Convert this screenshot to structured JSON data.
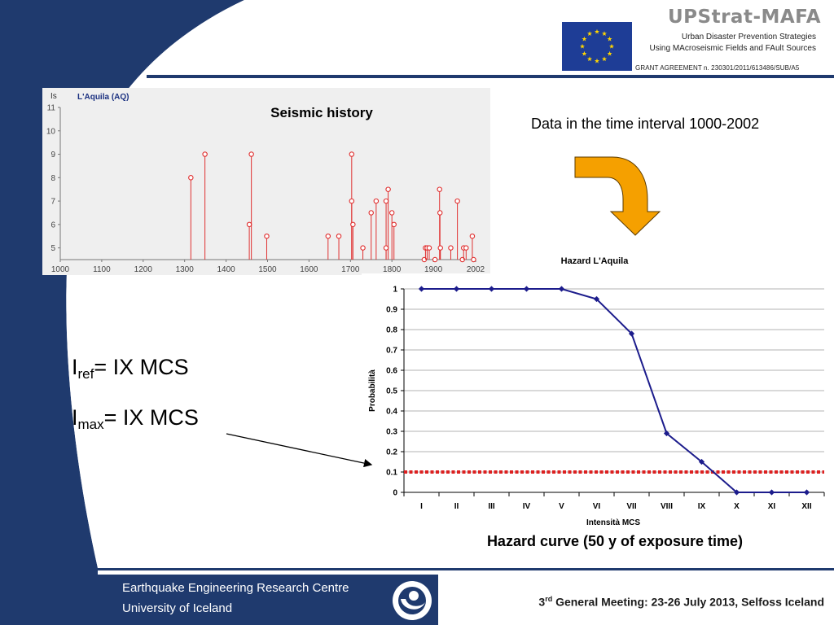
{
  "logo": {
    "title": "UPStrat-MAFA",
    "line1": "Urban Disaster Prevention Strategies",
    "line2": "Using MAcroseismic Fields and FAult Sources",
    "grant": "GRANT AGREEMENT n. 230301/2011/613486/SUB/A5"
  },
  "seismic_label": "Seismic history",
  "note": "Data in the time interval 1000-2002",
  "iref": {
    "prefix": "I",
    "sub": "ref",
    "rest": "= IX MCS"
  },
  "imax": {
    "prefix": "I",
    "sub": "max",
    "rest": "= IX MCS"
  },
  "caption": "Hazard curve (50 y of exposure time)",
  "footer": {
    "org_line1": "Earthquake Engineering Research Centre",
    "org_line2": "University of Iceland",
    "meeting_num": "3",
    "meeting_sup": "rd",
    "meeting_text": " General Meeting: 23-26 July 2013, Selfoss Iceland"
  },
  "colors": {
    "navy": "#1f3a6e",
    "seismic_red": "#e03030",
    "hazard_blue": "#1c1c8c",
    "threshold_red": "#dd2020",
    "arrow_orange": "#f5a000"
  },
  "chart_data": [
    {
      "type": "scatter",
      "title": "L'Aquila (AQ)",
      "ylabel": "Is",
      "xlim": [
        1000,
        2002
      ],
      "ylim": [
        4.5,
        11
      ],
      "x_ticks": [
        1000,
        1100,
        1200,
        1300,
        1400,
        1500,
        1600,
        1700,
        1800,
        1900,
        2002
      ],
      "y_ticks": [
        5,
        6,
        7,
        8,
        9,
        10,
        11
      ],
      "events": [
        {
          "year": 1315,
          "is": 8
        },
        {
          "year": 1349,
          "is": 9
        },
        {
          "year": 1456,
          "is": 6
        },
        {
          "year": 1461,
          "is": 9
        },
        {
          "year": 1498,
          "is": 5.5
        },
        {
          "year": 1646,
          "is": 5.5
        },
        {
          "year": 1672,
          "is": 5.5
        },
        {
          "year": 1703,
          "is": 9
        },
        {
          "year": 1703,
          "is": 7
        },
        {
          "year": 1706,
          "is": 6
        },
        {
          "year": 1730,
          "is": 5
        },
        {
          "year": 1750,
          "is": 6.5
        },
        {
          "year": 1762,
          "is": 7
        },
        {
          "year": 1786,
          "is": 7
        },
        {
          "year": 1786,
          "is": 5
        },
        {
          "year": 1791,
          "is": 7.5
        },
        {
          "year": 1800,
          "is": 6.5
        },
        {
          "year": 1805,
          "is": 6
        },
        {
          "year": 1878,
          "is": 4.5
        },
        {
          "year": 1881,
          "is": 5
        },
        {
          "year": 1885,
          "is": 5
        },
        {
          "year": 1890,
          "is": 5
        },
        {
          "year": 1904,
          "is": 4.5
        },
        {
          "year": 1915,
          "is": 7.5
        },
        {
          "year": 1916,
          "is": 6.5
        },
        {
          "year": 1917,
          "is": 5
        },
        {
          "year": 1942,
          "is": 5
        },
        {
          "year": 1958,
          "is": 7
        },
        {
          "year": 1970,
          "is": 4.5
        },
        {
          "year": 1973,
          "is": 5
        },
        {
          "year": 1979,
          "is": 5
        },
        {
          "year": 1994,
          "is": 5.5
        },
        {
          "year": 1997,
          "is": 4.5
        }
      ]
    },
    {
      "type": "line",
      "title": "Hazard L'Aquila",
      "xlabel": "Intensità MCS",
      "ylabel": "Probabilità",
      "categories": [
        "I",
        "II",
        "III",
        "IV",
        "V",
        "VI",
        "VII",
        "VIII",
        "IX",
        "X",
        "XI",
        "XII"
      ],
      "ylim": [
        0,
        1
      ],
      "y_ticks": [
        "0",
        "0.1",
        "0.2",
        "0.3",
        "0.4",
        "0.5",
        "0.6",
        "0.7",
        "0.8",
        "0.9",
        "1"
      ],
      "series": [
        {
          "values": [
            1,
            1,
            1,
            1,
            1,
            0.95,
            0.78,
            0.29,
            0.15,
            0,
            0,
            0
          ]
        }
      ],
      "threshold": 0.1,
      "grid": true
    }
  ]
}
